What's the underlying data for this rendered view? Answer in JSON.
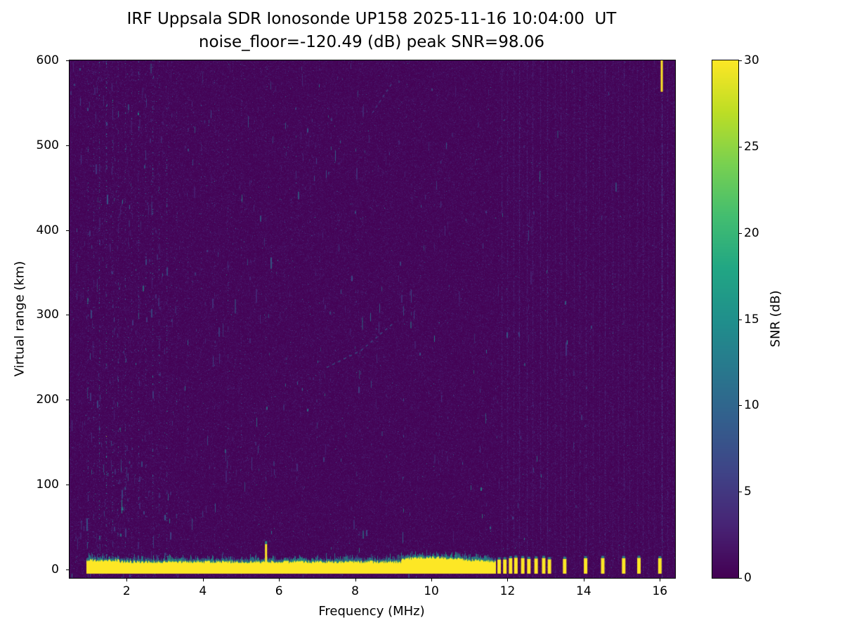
{
  "chart_data": {
    "type": "heatmap",
    "title": "IRF Uppsala SDR Ionosonde UP158 2025-11-16 10:04:00  UT",
    "subtitle": "noise_floor=-120.49 (dB) peak SNR=98.06",
    "xlabel": "Frequency (MHz)",
    "ylabel": "Virtual range (km)",
    "x_range_mhz": [
      0.5,
      16.4
    ],
    "y_range_km": [
      -10,
      600
    ],
    "x_ticks": [
      2,
      4,
      6,
      8,
      10,
      12,
      14,
      16
    ],
    "y_ticks": [
      0,
      100,
      200,
      300,
      400,
      500,
      600
    ],
    "noise_floor_db": -120.49,
    "peak_snr_db": 98.06,
    "colorbar": {
      "label": "SNR (dB)",
      "min": 0,
      "max": 30,
      "ticks": [
        0,
        5,
        10,
        15,
        20,
        25,
        30
      ],
      "colormap": "viridis"
    },
    "features": {
      "ground_pulse_band": {
        "f_start": 0.95,
        "f_end": 11.68,
        "top_km": 8,
        "bottom_km": -5,
        "snr_db": 30
      },
      "ground_pulse_spike": {
        "f_mhz": 5.65,
        "top_km": 30
      },
      "ground_pulse_blips": {
        "f_mhz": [
          11.78,
          11.93,
          12.08,
          12.22,
          12.4,
          12.56,
          12.75,
          12.95,
          13.1,
          13.5,
          14.05,
          14.5,
          15.05,
          15.45,
          16.0
        ],
        "top_km": 14,
        "bottom_km": -5
      },
      "echo_trace_segments": [
        {
          "f1": 7.25,
          "km1": 238,
          "f2": 8.15,
          "km2": 258,
          "snr_db": 10
        },
        {
          "f1": 8.15,
          "km1": 258,
          "f2": 9.05,
          "km2": 292,
          "snr_db": 9
        },
        {
          "f1": 8.45,
          "km1": 538,
          "f2": 8.95,
          "km2": 572,
          "snr_db": 7
        }
      ],
      "right_top_mark": {
        "f_mhz": 16.05,
        "km_top": 600,
        "km_bottom": 563
      },
      "interference_stripes": [
        [
          0.98,
          12,
          0.1
        ],
        [
          1.12,
          10,
          0.08
        ],
        [
          1.28,
          14,
          0.12
        ],
        [
          1.45,
          16,
          0.13
        ],
        [
          1.62,
          13,
          0.11
        ],
        [
          1.78,
          10,
          0.08
        ],
        [
          1.95,
          12,
          0.1
        ],
        [
          2.12,
          10,
          0.08
        ],
        [
          2.3,
          12,
          0.1
        ],
        [
          2.5,
          10,
          0.08
        ],
        [
          2.68,
          14,
          0.11
        ],
        [
          2.85,
          11,
          0.09
        ],
        [
          3.05,
          13,
          0.1
        ],
        [
          3.3,
          8,
          0.06
        ],
        [
          3.6,
          8,
          0.06
        ],
        [
          3.95,
          8,
          0.05
        ],
        [
          4.3,
          7,
          0.05
        ],
        [
          4.65,
          9,
          0.06
        ],
        [
          5.0,
          7,
          0.05
        ],
        [
          5.35,
          6,
          0.04
        ],
        [
          5.65,
          8,
          0.06
        ],
        [
          6.15,
          6,
          0.04
        ],
        [
          6.6,
          6,
          0.04
        ],
        [
          7.05,
          6,
          0.04
        ],
        [
          7.55,
          5,
          0.035
        ],
        [
          8.2,
          5,
          0.03
        ],
        [
          8.9,
          5,
          0.03
        ],
        [
          9.55,
          5,
          0.035
        ],
        [
          10.2,
          5,
          0.03
        ],
        [
          10.8,
          5,
          0.03
        ],
        [
          11.35,
          5,
          0.03
        ],
        [
          11.85,
          3,
          0.5
        ],
        [
          12.0,
          3,
          0.5
        ],
        [
          12.15,
          3,
          0.5
        ],
        [
          12.3,
          3.5,
          0.55
        ],
        [
          12.5,
          3,
          0.5
        ],
        [
          12.65,
          3,
          0.5
        ],
        [
          12.85,
          3,
          0.5
        ],
        [
          13.05,
          3.5,
          0.55
        ],
        [
          13.25,
          2.5,
          0.45
        ],
        [
          13.4,
          2.5,
          0.45
        ],
        [
          13.55,
          3,
          0.5
        ],
        [
          13.75,
          2.5,
          0.45
        ],
        [
          13.9,
          2.5,
          0.45
        ],
        [
          14.05,
          3.5,
          0.55
        ],
        [
          14.25,
          2.5,
          0.45
        ],
        [
          14.4,
          2.5,
          0.45
        ],
        [
          14.55,
          3.5,
          0.5
        ],
        [
          14.75,
          2.5,
          0.45
        ],
        [
          14.9,
          2.5,
          0.45
        ],
        [
          15.05,
          3.5,
          0.5
        ],
        [
          15.2,
          2.5,
          0.45
        ],
        [
          15.4,
          2.5,
          0.45
        ],
        [
          15.55,
          3,
          0.5
        ],
        [
          15.7,
          2.5,
          0.45
        ],
        [
          15.85,
          2.5,
          0.45
        ],
        [
          16.05,
          6,
          0.7
        ],
        [
          16.2,
          3,
          0.5
        ],
        [
          16.35,
          2.5,
          0.45
        ]
      ],
      "speckle": {
        "dash_count": 700,
        "base_noise_db": 0.6,
        "dot_density": 0.0038
      }
    },
    "colors": {
      "background": "#ffffff",
      "viridis_low": "#440154",
      "viridis_high": "#fde725",
      "axis": "#000000"
    }
  }
}
